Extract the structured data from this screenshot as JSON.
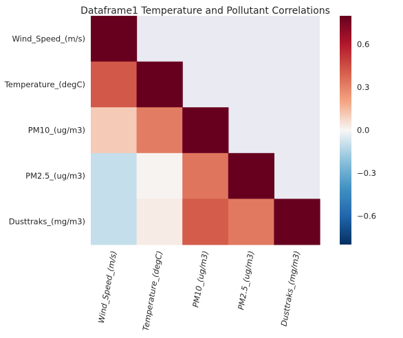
{
  "chart_data": {
    "type": "heatmap",
    "title": "Dataframe1 Temperature and Pollutant Correlations",
    "row_labels": [
      "Wind_Speed_(m/s)",
      "Temperature_(degC)",
      "PM10_(ug/m3)",
      "PM2.5_(ug/m3)",
      "Dusttraks_(mg/m3)"
    ],
    "col_labels": [
      "Wind_Speed_(m/s)",
      "Temperature_(degC)",
      "PM10_(ug/m3)",
      "PM2.5_(ug/m3)",
      "Dusttraks_(mg/m3)"
    ],
    "masked": "upper triangle",
    "values": [
      [
        1.0,
        null,
        null,
        null,
        null
      ],
      [
        0.42,
        1.0,
        null,
        null,
        null
      ],
      [
        0.11,
        0.32,
        1.0,
        null,
        null
      ],
      [
        -0.1,
        0.01,
        0.34,
        1.0,
        null
      ],
      [
        -0.1,
        0.03,
        0.41,
        0.33,
        1.0
      ]
    ],
    "colormap": "RdBu_r",
    "vmin": -0.8,
    "vmax": 0.8,
    "colorbar_ticks": [
      "0.6",
      "0.3",
      "0.0",
      "−0.3",
      "−0.6"
    ],
    "colorbar_tick_values": [
      0.6,
      0.3,
      0.0,
      -0.3,
      -0.6
    ],
    "background_color": "#eaeaf2"
  }
}
